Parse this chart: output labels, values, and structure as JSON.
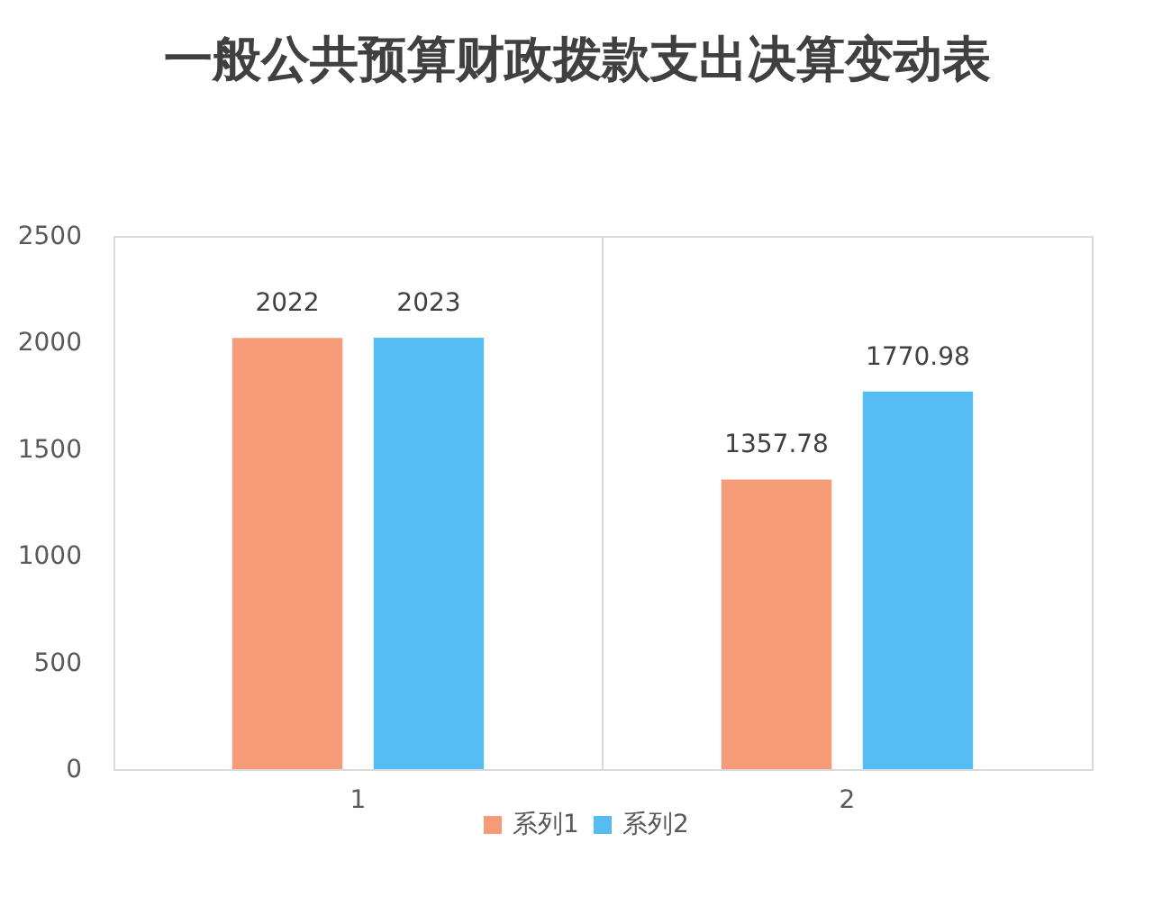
{
  "chart_data": {
    "type": "bar",
    "title": "一般公共预算财政拨款支出决算变动表",
    "categories": [
      "1",
      "2"
    ],
    "series": [
      {
        "name": "系列1",
        "color": "#f59b78",
        "values": [
          2022,
          1357.78
        ]
      },
      {
        "name": "系列2",
        "color": "#55bcf4",
        "values": [
          2023,
          1770.98
        ]
      }
    ],
    "ylim": [
      0,
      2500
    ],
    "yticks": [
      0,
      500,
      1000,
      1500,
      2000,
      2500
    ],
    "grid": "x",
    "legend": "bottom",
    "data_labels": true
  }
}
